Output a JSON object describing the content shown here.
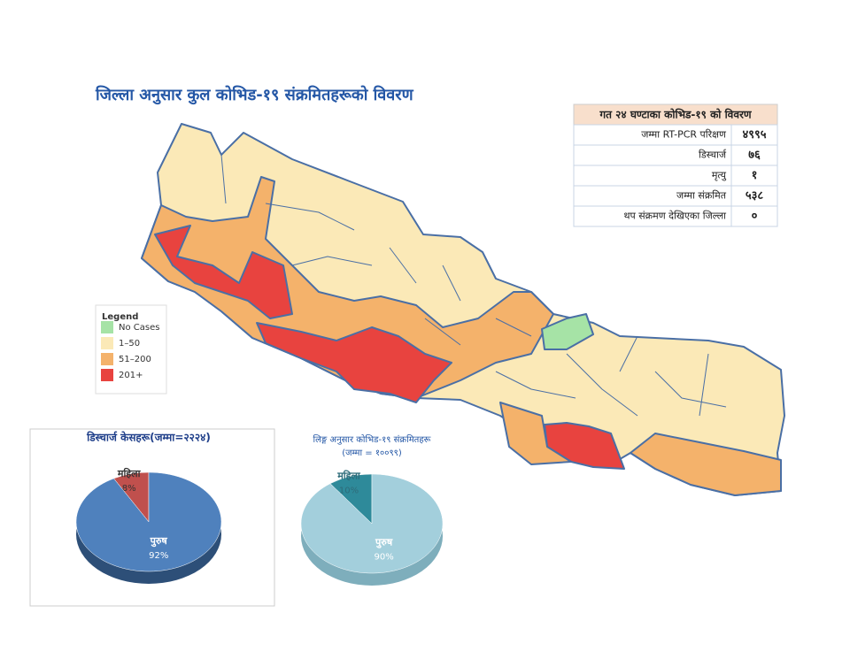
{
  "map": {
    "title": "जिल्ला अनुसार कुल कोभिड-१९ संक्रमितहरूको विवरण",
    "legend": {
      "title": "Legend",
      "items": [
        {
          "label": "No Cases",
          "color": "#a6e3a6"
        },
        {
          "label": "1–50",
          "color": "#fbe9b7"
        },
        {
          "label": "51–200",
          "color": "#f4b26b"
        },
        {
          "label": "201+",
          "color": "#e8433f"
        }
      ]
    }
  },
  "table": {
    "title": "गत २४ घण्टाका कोभिड-१९ को विवरण",
    "rows": [
      [
        "जम्मा RT-PCR परिक्षण",
        "४९९५"
      ],
      [
        "डिस्चार्ज",
        "७६"
      ],
      [
        "मृत्यु",
        "१"
      ],
      [
        "जम्मा संक्रमित",
        "५३८"
      ],
      [
        "थप संक्रमण देखिएका जिल्ला",
        "०"
      ]
    ]
  },
  "chart_data": [
    {
      "type": "pie",
      "title": "डिस्चार्ज केसहरू(जम्मा=२२२४)",
      "categories": [
        "महिला",
        "पुरुष"
      ],
      "values": [
        8,
        92
      ],
      "value_labels": [
        "8%",
        "92%"
      ],
      "colors": [
        "#c0504d",
        "#4f81bd"
      ]
    },
    {
      "type": "pie",
      "title": "लिङ्ग अनुसार कोभिड-१९ संक्रमितहरू",
      "subtitle": "(जम्मा = १००९९)",
      "categories": [
        "महिला",
        "पुरुष"
      ],
      "values": [
        10,
        90
      ],
      "value_labels": [
        "10%",
        "90%"
      ],
      "colors": [
        "#2e8a9a",
        "#a3cfdc"
      ]
    }
  ]
}
